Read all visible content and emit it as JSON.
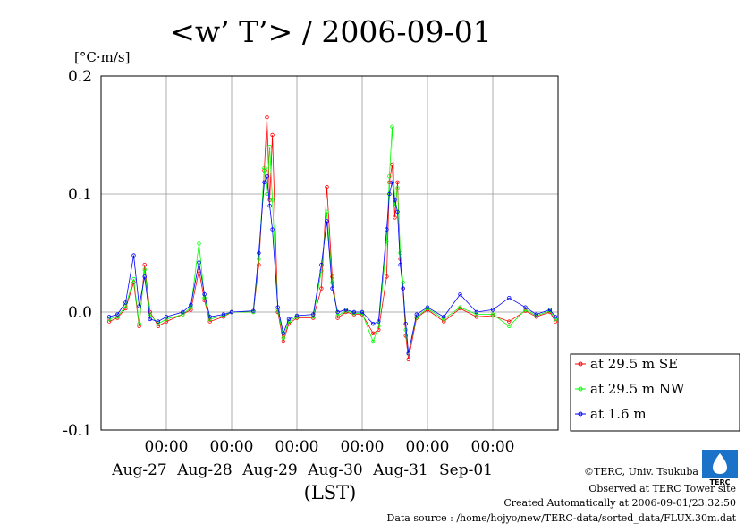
{
  "chart_data": {
    "type": "line",
    "title": "<w’ T’> / 2006-09-01",
    "ylabel": "[°C·m/s]",
    "xlabel": "(LST)",
    "ylim": [
      -0.1,
      0.2
    ],
    "yticks": [
      {
        "value": -0.1,
        "label": "-0.1"
      },
      {
        "value": 0.0,
        "label": "0.0"
      },
      {
        "value": 0.1,
        "label": "0.1"
      },
      {
        "value": 0.2,
        "label": "0.2"
      }
    ],
    "xlim": [
      "2006-08-26T00:00",
      "2006-09-02T00:00"
    ],
    "xticks": [
      {
        "time": "2006-08-27T00:00",
        "hour": "00:00",
        "date": "Aug-27"
      },
      {
        "time": "2006-08-28T00:00",
        "hour": "00:00",
        "date": "Aug-28"
      },
      {
        "time": "2006-08-29T00:00",
        "hour": "00:00",
        "date": "Aug-29"
      },
      {
        "time": "2006-08-30T00:00",
        "hour": "00:00",
        "date": "Aug-30"
      },
      {
        "time": "2006-08-31T00:00",
        "hour": "00:00",
        "date": "Aug-31"
      },
      {
        "time": "2006-09-01T00:00",
        "hour": "00:00",
        "date": "Sep-01"
      }
    ],
    "grid": true,
    "legend_position": "right",
    "series": [
      {
        "name": "at 29.5 m SE",
        "color": "#ff0000",
        "points": [
          [
            "2006-08-26T03:00",
            -0.008
          ],
          [
            "2006-08-26T06:00",
            -0.005
          ],
          [
            "2006-08-26T09:00",
            0.003
          ],
          [
            "2006-08-26T12:00",
            0.025
          ],
          [
            "2006-08-26T14:00",
            -0.012
          ],
          [
            "2006-08-26T16:00",
            0.04
          ],
          [
            "2006-08-26T18:00",
            0.0
          ],
          [
            "2006-08-26T21:00",
            -0.012
          ],
          [
            "2006-08-27T00:00",
            -0.008
          ],
          [
            "2006-08-27T06:00",
            -0.002
          ],
          [
            "2006-08-27T09:00",
            0.002
          ],
          [
            "2006-08-27T12:00",
            0.035
          ],
          [
            "2006-08-27T14:00",
            0.01
          ],
          [
            "2006-08-27T16:00",
            -0.008
          ],
          [
            "2006-08-27T21:00",
            -0.004
          ],
          [
            "2006-08-28T00:00",
            0.0
          ],
          [
            "2006-08-28T08:00",
            0.0
          ],
          [
            "2006-08-28T10:00",
            0.04
          ],
          [
            "2006-08-28T12:00",
            0.12
          ],
          [
            "2006-08-28T13:00",
            0.165
          ],
          [
            "2006-08-28T14:00",
            0.095
          ],
          [
            "2006-08-28T15:00",
            0.15
          ],
          [
            "2006-08-28T17:00",
            0.0
          ],
          [
            "2006-08-28T19:00",
            -0.025
          ],
          [
            "2006-08-28T21:00",
            -0.01
          ],
          [
            "2006-08-29T00:00",
            -0.005
          ],
          [
            "2006-08-29T06:00",
            -0.005
          ],
          [
            "2006-08-29T09:00",
            0.02
          ],
          [
            "2006-08-29T11:00",
            0.106
          ],
          [
            "2006-08-29T13:00",
            0.03
          ],
          [
            "2006-08-29T15:00",
            -0.005
          ],
          [
            "2006-08-29T18:00",
            0.0
          ],
          [
            "2006-08-29T21:00",
            -0.002
          ],
          [
            "2006-08-30T00:00",
            -0.002
          ],
          [
            "2006-08-30T04:00",
            -0.018
          ],
          [
            "2006-08-30T06:00",
            -0.015
          ],
          [
            "2006-08-30T09:00",
            0.03
          ],
          [
            "2006-08-30T10:00",
            0.11
          ],
          [
            "2006-08-30T11:00",
            0.125
          ],
          [
            "2006-08-30T12:00",
            0.08
          ],
          [
            "2006-08-30T13:00",
            0.11
          ],
          [
            "2006-08-30T14:00",
            0.045
          ],
          [
            "2006-08-30T15:00",
            0.02
          ],
          [
            "2006-08-30T16:00",
            -0.02
          ],
          [
            "2006-08-30T17:00",
            -0.04
          ],
          [
            "2006-08-30T20:00",
            -0.005
          ],
          [
            "2006-08-31T00:00",
            0.002
          ],
          [
            "2006-08-31T06:00",
            -0.008
          ],
          [
            "2006-08-31T12:00",
            0.003
          ],
          [
            "2006-08-31T18:00",
            -0.004
          ],
          [
            "2006-09-01T00:00",
            -0.003
          ],
          [
            "2006-09-01T06:00",
            -0.008
          ],
          [
            "2006-09-01T12:00",
            0.001
          ],
          [
            "2006-09-01T16:00",
            -0.004
          ],
          [
            "2006-09-01T21:00",
            0.0
          ],
          [
            "2006-09-01T23:00",
            -0.008
          ]
        ]
      },
      {
        "name": "at 29.5 m NW",
        "color": "#00ff00",
        "points": [
          [
            "2006-08-26T03:00",
            -0.006
          ],
          [
            "2006-08-26T06:00",
            -0.004
          ],
          [
            "2006-08-26T09:00",
            0.005
          ],
          [
            "2006-08-26T12:00",
            0.028
          ],
          [
            "2006-08-26T14:00",
            -0.01
          ],
          [
            "2006-08-26T16:00",
            0.036
          ],
          [
            "2006-08-26T18:00",
            -0.002
          ],
          [
            "2006-08-26T21:00",
            -0.01
          ],
          [
            "2006-08-27T00:00",
            -0.006
          ],
          [
            "2006-08-27T06:00",
            -0.002
          ],
          [
            "2006-08-27T09:00",
            0.004
          ],
          [
            "2006-08-27T12:00",
            0.058
          ],
          [
            "2006-08-27T14:00",
            0.012
          ],
          [
            "2006-08-27T16:00",
            -0.006
          ],
          [
            "2006-08-27T21:00",
            -0.003
          ],
          [
            "2006-08-28T00:00",
            0.0
          ],
          [
            "2006-08-28T08:00",
            0.0
          ],
          [
            "2006-08-28T10:00",
            0.045
          ],
          [
            "2006-08-28T12:00",
            0.122
          ],
          [
            "2006-08-28T13:00",
            0.1
          ],
          [
            "2006-08-28T14:00",
            0.14
          ],
          [
            "2006-08-28T15:00",
            0.095
          ],
          [
            "2006-08-28T17:00",
            0.002
          ],
          [
            "2006-08-28T19:00",
            -0.022
          ],
          [
            "2006-08-28T21:00",
            -0.008
          ],
          [
            "2006-08-29T00:00",
            -0.004
          ],
          [
            "2006-08-29T06:00",
            -0.004
          ],
          [
            "2006-08-29T09:00",
            0.035
          ],
          [
            "2006-08-29T11:00",
            0.085
          ],
          [
            "2006-08-29T13:00",
            0.025
          ],
          [
            "2006-08-29T15:00",
            -0.003
          ],
          [
            "2006-08-29T18:00",
            0.001
          ],
          [
            "2006-08-29T21:00",
            -0.001
          ],
          [
            "2006-08-30T00:00",
            -0.001
          ],
          [
            "2006-08-30T04:00",
            -0.025
          ],
          [
            "2006-08-30T06:00",
            -0.012
          ],
          [
            "2006-08-30T09:00",
            0.06
          ],
          [
            "2006-08-30T10:00",
            0.115
          ],
          [
            "2006-08-30T11:00",
            0.157
          ],
          [
            "2006-08-30T12:00",
            0.09
          ],
          [
            "2006-08-30T13:00",
            0.105
          ],
          [
            "2006-08-30T14:00",
            0.05
          ],
          [
            "2006-08-30T15:00",
            0.025
          ],
          [
            "2006-08-30T16:00",
            -0.015
          ],
          [
            "2006-08-30T17:00",
            -0.035
          ],
          [
            "2006-08-30T20:00",
            -0.004
          ],
          [
            "2006-08-31T00:00",
            0.003
          ],
          [
            "2006-08-31T06:00",
            -0.006
          ],
          [
            "2006-08-31T12:00",
            0.004
          ],
          [
            "2006-08-31T18:00",
            -0.002
          ],
          [
            "2006-09-01T00:00",
            -0.002
          ],
          [
            "2006-09-01T06:00",
            -0.012
          ],
          [
            "2006-09-01T12:00",
            0.002
          ],
          [
            "2006-09-01T16:00",
            -0.003
          ],
          [
            "2006-09-01T21:00",
            0.001
          ],
          [
            "2006-09-01T23:00",
            -0.006
          ]
        ]
      },
      {
        "name": "at 1.6 m",
        "color": "#0000ff",
        "points": [
          [
            "2006-08-26T03:00",
            -0.004
          ],
          [
            "2006-08-26T06:00",
            -0.002
          ],
          [
            "2006-08-26T09:00",
            0.008
          ],
          [
            "2006-08-26T12:00",
            0.048
          ],
          [
            "2006-08-26T14:00",
            0.005
          ],
          [
            "2006-08-26T16:00",
            0.03
          ],
          [
            "2006-08-26T18:00",
            -0.006
          ],
          [
            "2006-08-26T21:00",
            -0.008
          ],
          [
            "2006-08-27T00:00",
            -0.004
          ],
          [
            "2006-08-27T06:00",
            0.0
          ],
          [
            "2006-08-27T09:00",
            0.006
          ],
          [
            "2006-08-27T12:00",
            0.042
          ],
          [
            "2006-08-27T14:00",
            0.015
          ],
          [
            "2006-08-27T16:00",
            -0.004
          ],
          [
            "2006-08-27T21:00",
            -0.002
          ],
          [
            "2006-08-28T00:00",
            0.0
          ],
          [
            "2006-08-28T08:00",
            0.001
          ],
          [
            "2006-08-28T10:00",
            0.05
          ],
          [
            "2006-08-28T12:00",
            0.11
          ],
          [
            "2006-08-28T13:00",
            0.115
          ],
          [
            "2006-08-28T14:00",
            0.09
          ],
          [
            "2006-08-28T15:00",
            0.07
          ],
          [
            "2006-08-28T17:00",
            0.004
          ],
          [
            "2006-08-28T19:00",
            -0.018
          ],
          [
            "2006-08-28T21:00",
            -0.006
          ],
          [
            "2006-08-29T00:00",
            -0.003
          ],
          [
            "2006-08-29T06:00",
            -0.002
          ],
          [
            "2006-08-29T09:00",
            0.04
          ],
          [
            "2006-08-29T11:00",
            0.077
          ],
          [
            "2006-08-29T13:00",
            0.02
          ],
          [
            "2006-08-29T15:00",
            0.0
          ],
          [
            "2006-08-29T18:00",
            0.002
          ],
          [
            "2006-08-29T21:00",
            0.0
          ],
          [
            "2006-08-30T00:00",
            0.0
          ],
          [
            "2006-08-30T04:00",
            -0.01
          ],
          [
            "2006-08-30T06:00",
            -0.008
          ],
          [
            "2006-08-30T09:00",
            0.07
          ],
          [
            "2006-08-30T10:00",
            0.1
          ],
          [
            "2006-08-30T11:00",
            0.11
          ],
          [
            "2006-08-30T12:00",
            0.095
          ],
          [
            "2006-08-30T13:00",
            0.085
          ],
          [
            "2006-08-30T14:00",
            0.04
          ],
          [
            "2006-08-30T15:00",
            0.02
          ],
          [
            "2006-08-30T16:00",
            -0.01
          ],
          [
            "2006-08-30T17:00",
            -0.035
          ],
          [
            "2006-08-30T20:00",
            -0.002
          ],
          [
            "2006-08-31T00:00",
            0.004
          ],
          [
            "2006-08-31T06:00",
            -0.004
          ],
          [
            "2006-08-31T12:00",
            0.015
          ],
          [
            "2006-08-31T18:00",
            0.0
          ],
          [
            "2006-09-01T00:00",
            0.002
          ],
          [
            "2006-09-01T06:00",
            0.012
          ],
          [
            "2006-09-01T12:00",
            0.004
          ],
          [
            "2006-09-01T16:00",
            -0.002
          ],
          [
            "2006-09-01T21:00",
            0.002
          ],
          [
            "2006-09-01T23:00",
            -0.004
          ]
        ]
      }
    ]
  },
  "footer": {
    "logo_text": "TERC",
    "copyright": "©TERC, Univ. Tsukuba",
    "site": "Observed at TERC Tower site",
    "created": "Created Automatically at 2006-09-01/23:32:50",
    "source": "Data source : /home/hojyo/new/TERC-data/sorted_data/FLUX.30m.dat"
  }
}
